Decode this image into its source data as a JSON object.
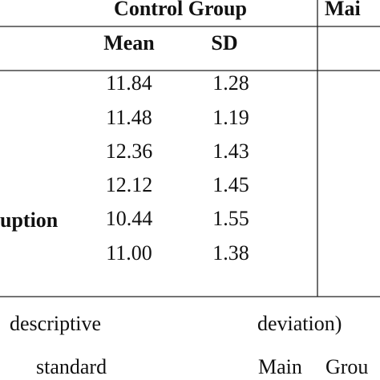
{
  "table": {
    "header": {
      "group_1": "Control Group",
      "group_2": "Mai"
    },
    "subheader": [
      "Mean",
      "SD"
    ],
    "row_label": "uption",
    "rows": [
      [
        "11.84",
        "1.28"
      ],
      [
        "11.48",
        "1.19"
      ],
      [
        "12.36",
        "1.43"
      ],
      [
        "12.12",
        "1.45"
      ],
      [
        "10.44",
        "1.55"
      ],
      [
        "11.00",
        "1.38"
      ]
    ]
  },
  "caption": {
    "line_1": [
      "descriptive",
      "deviation)"
    ],
    "line_2": [
      "standard",
      "Main",
      "Grou"
    ]
  }
}
